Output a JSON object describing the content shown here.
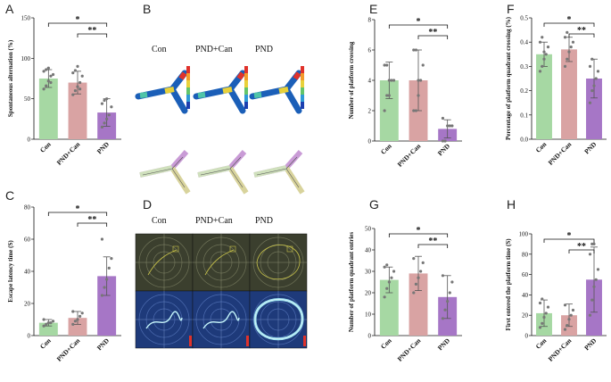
{
  "panel_letters": [
    "A",
    "B",
    "C",
    "D",
    "E",
    "F",
    "G",
    "H"
  ],
  "colors": {
    "Con": "#a6d8a3",
    "PND+Can": "#d9a3a3",
    "PND": "#a676c6"
  },
  "maze_labels": [
    "Con",
    "PND+Can",
    "PND"
  ],
  "chart_data": [
    {
      "panel": "A",
      "type": "bar",
      "categories": [
        "Con",
        "PND+Can",
        "PND"
      ],
      "values": [
        75,
        70,
        33
      ],
      "errors": [
        11,
        14,
        17
      ],
      "ylabel": "Spontaneous alternation (%)",
      "ylim": [
        0,
        150
      ],
      "yticks": [
        0,
        50,
        100,
        150
      ],
      "points": [
        [
          62,
          66,
          72,
          78,
          80,
          84,
          86,
          88,
          70
        ],
        [
          55,
          60,
          65,
          70,
          78,
          82,
          85,
          90,
          62
        ],
        [
          15,
          20,
          25,
          30,
          40,
          44,
          48,
          50
        ]
      ],
      "sig": [
        {
          "pair": [
            0,
            2
          ],
          "label": "*"
        },
        {
          "pair": [
            1,
            2
          ],
          "label": "**"
        }
      ]
    },
    {
      "panel": "C",
      "type": "bar",
      "categories": [
        "Con",
        "PND+Can",
        "PND"
      ],
      "values": [
        8,
        11,
        37
      ],
      "errors": [
        2,
        4,
        12
      ],
      "ylabel": "Escape latency time (S)",
      "ylim": [
        0,
        80
      ],
      "yticks": [
        0,
        20,
        40,
        60,
        80
      ],
      "points": [
        [
          6,
          7,
          8,
          8,
          9,
          10
        ],
        [
          7,
          9,
          10,
          12,
          14,
          15
        ],
        [
          25,
          30,
          35,
          42,
          48,
          60
        ]
      ],
      "sig": [
        {
          "pair": [
            0,
            2
          ],
          "label": "*"
        },
        {
          "pair": [
            1,
            2
          ],
          "label": "**"
        }
      ]
    },
    {
      "panel": "E",
      "type": "bar",
      "categories": [
        "Con",
        "PND+Can",
        "PND"
      ],
      "values": [
        4,
        4,
        0.8
      ],
      "errors": [
        1.2,
        2,
        0.6
      ],
      "ylabel": "Number of platform crossing",
      "ylim": [
        0,
        8
      ],
      "yticks": [
        0,
        2,
        4,
        6,
        8
      ],
      "points": [
        [
          2,
          3,
          3,
          4,
          4,
          5,
          5,
          4
        ],
        [
          2,
          2,
          3,
          4,
          5,
          6,
          6,
          4
        ],
        [
          0,
          0,
          1,
          1,
          1,
          1.5
        ]
      ],
      "sig": [
        {
          "pair": [
            0,
            2
          ],
          "label": "*"
        },
        {
          "pair": [
            1,
            2
          ],
          "label": "**"
        }
      ]
    },
    {
      "panel": "F",
      "type": "bar",
      "categories": [
        "Con",
        "PND+Can",
        "PND"
      ],
      "values": [
        0.35,
        0.37,
        0.25
      ],
      "errors": [
        0.05,
        0.05,
        0.08
      ],
      "ylabel": "Percentage of platform quadrant crossing (%)",
      "ylim": [
        0,
        0.5
      ],
      "yticks": [
        0.0,
        0.1,
        0.2,
        0.3,
        0.4,
        0.5
      ],
      "points": [
        [
          0.28,
          0.3,
          0.33,
          0.35,
          0.38,
          0.4,
          0.42,
          0.36
        ],
        [
          0.3,
          0.33,
          0.36,
          0.38,
          0.4,
          0.42,
          0.44
        ],
        [
          0.15,
          0.2,
          0.22,
          0.25,
          0.28,
          0.3,
          0.33
        ]
      ],
      "sig": [
        {
          "pair": [
            0,
            2
          ],
          "label": "*"
        },
        {
          "pair": [
            1,
            2
          ],
          "label": "**"
        }
      ]
    },
    {
      "panel": "G",
      "type": "bar",
      "categories": [
        "Con",
        "PND+Can",
        "PND"
      ],
      "values": [
        26,
        29,
        18
      ],
      "errors": [
        6,
        8,
        10
      ],
      "ylabel": "Number of platform quadrant entries",
      "ylim": [
        0,
        50
      ],
      "yticks": [
        0,
        10,
        20,
        30,
        40,
        50
      ],
      "points": [
        [
          18,
          22,
          25,
          27,
          30,
          32,
          33
        ],
        [
          20,
          24,
          27,
          30,
          34,
          36
        ],
        [
          8,
          12,
          16,
          20,
          25,
          28
        ]
      ],
      "sig": [
        {
          "pair": [
            0,
            2
          ],
          "label": "*"
        },
        {
          "pair": [
            1,
            2
          ],
          "label": "**"
        }
      ]
    },
    {
      "panel": "H",
      "type": "bar",
      "categories": [
        "Con",
        "PND+Can",
        "PND"
      ],
      "values": [
        22,
        20,
        55
      ],
      "errors": [
        13,
        11,
        32
      ],
      "ylabel": "First entered the platform time (S)",
      "ylim": [
        0,
        100
      ],
      "yticks": [
        0,
        20,
        40,
        60,
        80,
        100
      ],
      "points": [
        [
          8,
          12,
          18,
          22,
          28,
          32,
          36
        ],
        [
          6,
          10,
          16,
          20,
          25,
          30
        ],
        [
          20,
          35,
          48,
          55,
          65,
          80,
          90,
          90
        ]
      ],
      "sig": [
        {
          "pair": [
            0,
            2
          ],
          "label": "*"
        },
        {
          "pair": [
            1,
            2
          ],
          "label": "**"
        }
      ]
    }
  ]
}
